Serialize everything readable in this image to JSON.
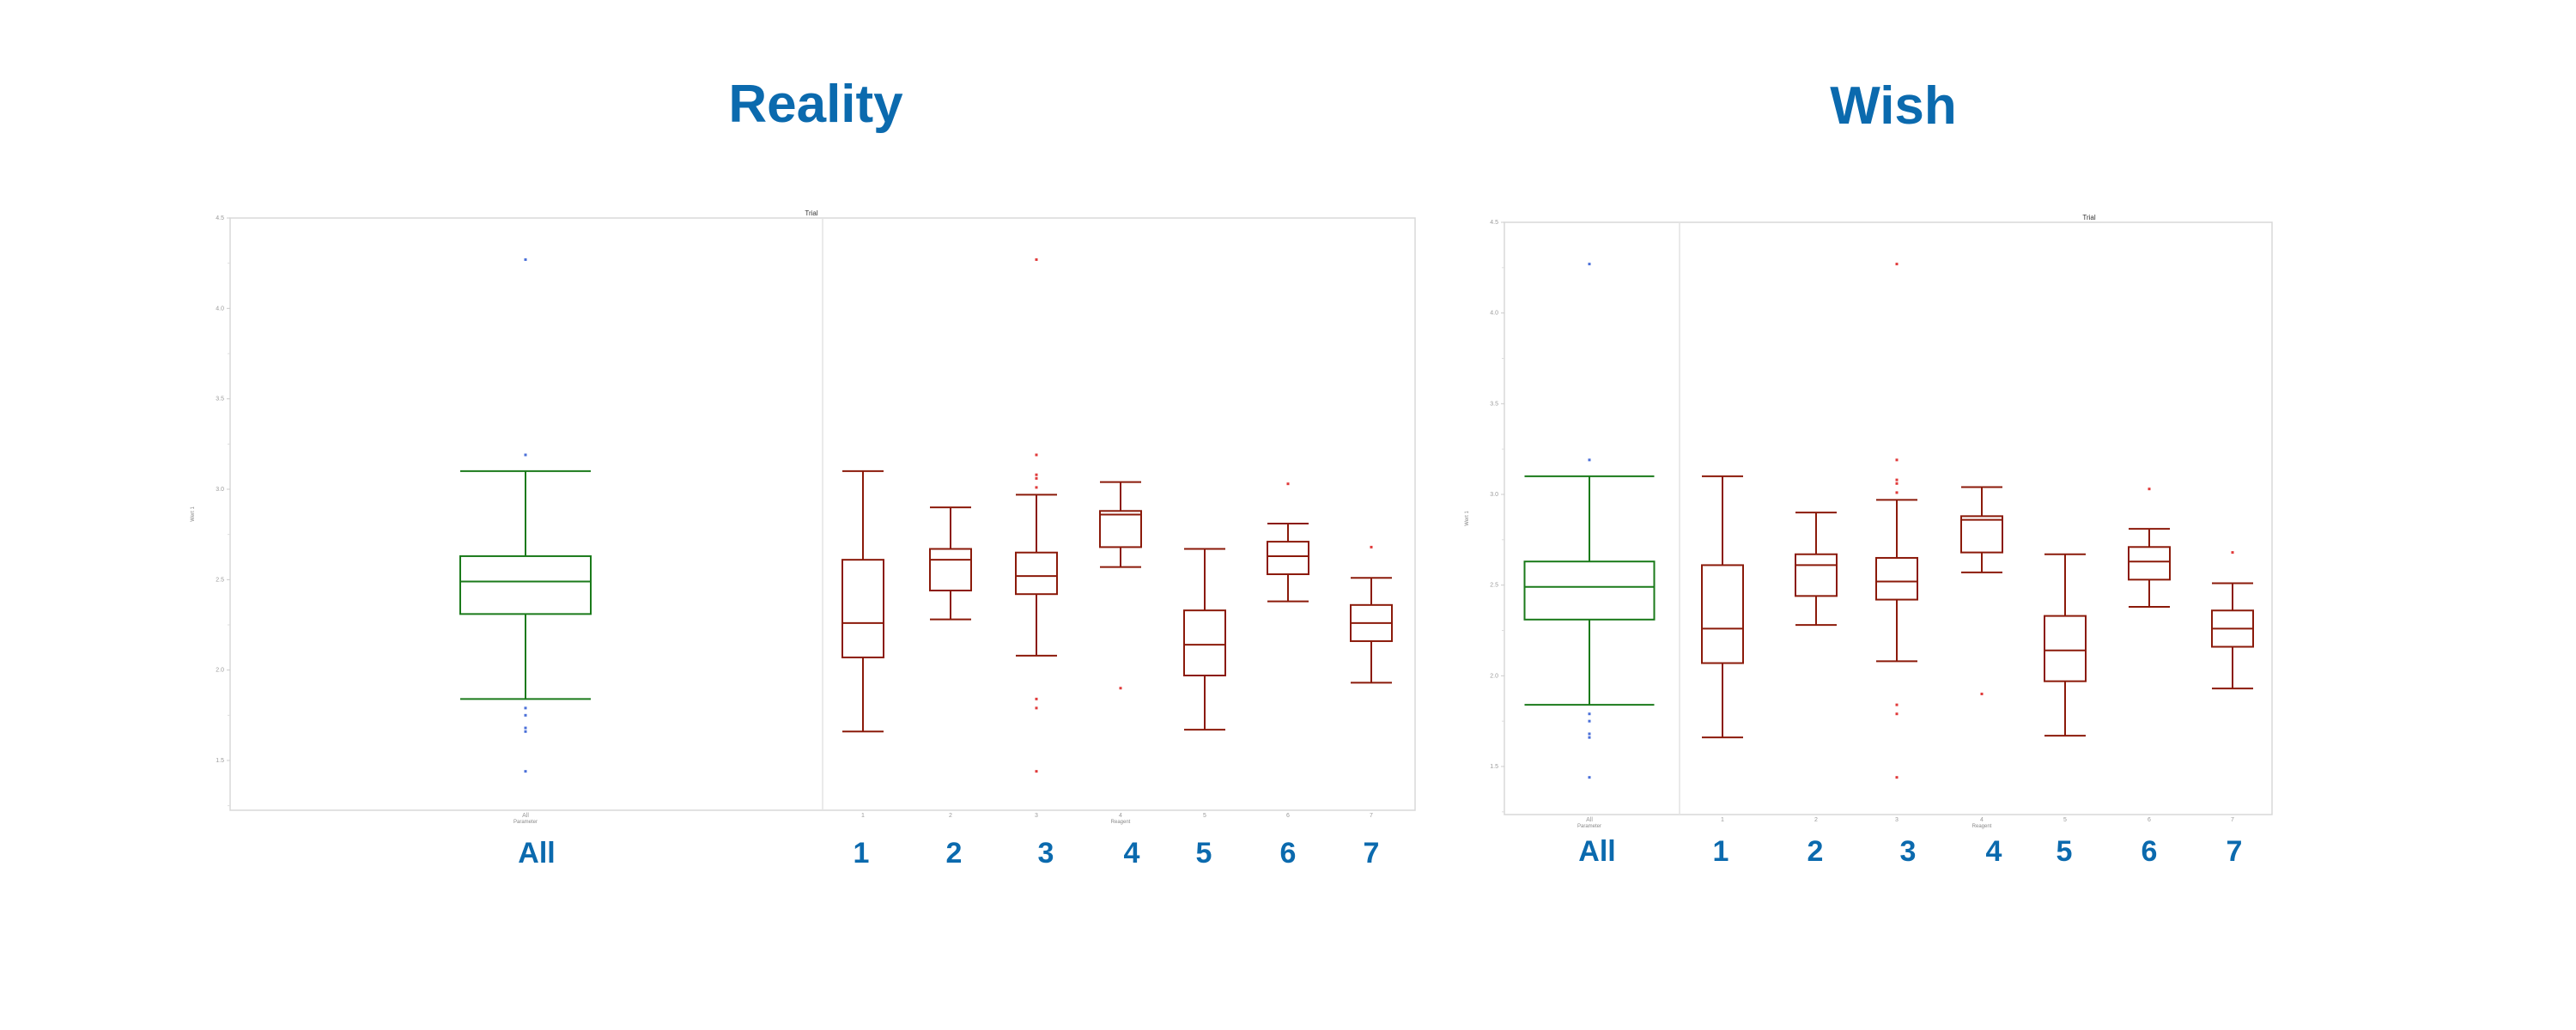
{
  "titles": {
    "left": "Reality",
    "right": "Wish"
  },
  "big_labels": [
    "All",
    "1",
    "2",
    "3",
    "4",
    "5",
    "6",
    "7"
  ],
  "colors": {
    "title": "#0b6aae",
    "all_box": "#1a7a1a",
    "group_box": "#8b1a0a",
    "all_outlier": "#4a6fd8",
    "group_outlier": "#e03a3a",
    "frame": "#d8d8d8"
  },
  "chart_data": [
    {
      "type": "boxplot",
      "title": "Trial",
      "panel_title": "Reality",
      "ylabel": "Wert 1",
      "xlabel_left": "Parameter",
      "xlabel_right": "Reagent",
      "ylim": [
        1.25,
        4.5
      ],
      "yticks": [
        1.5,
        2.0,
        2.5,
        3.0,
        3.5,
        4.0,
        4.5
      ],
      "categories": [
        "All",
        "1",
        "2",
        "3",
        "4",
        "5",
        "6",
        "7"
      ],
      "boxes": [
        {
          "name": "All",
          "whisker_low": 1.84,
          "q1": 2.31,
          "median": 2.49,
          "q3": 2.63,
          "whisker_high": 3.1,
          "outliers": [
            4.27,
            3.19,
            1.79,
            1.75,
            1.68,
            1.66,
            1.44
          ]
        },
        {
          "name": "1",
          "whisker_low": 1.66,
          "q1": 2.07,
          "median": 2.26,
          "q3": 2.61,
          "whisker_high": 3.1,
          "outliers": []
        },
        {
          "name": "2",
          "whisker_low": 2.28,
          "q1": 2.44,
          "median": 2.61,
          "q3": 2.67,
          "whisker_high": 2.9,
          "outliers": []
        },
        {
          "name": "3",
          "whisker_low": 2.08,
          "q1": 2.42,
          "median": 2.52,
          "q3": 2.65,
          "whisker_high": 2.97,
          "outliers": [
            4.27,
            3.19,
            3.08,
            3.06,
            3.01,
            1.84,
            1.79,
            1.44
          ]
        },
        {
          "name": "4",
          "whisker_low": 2.57,
          "q1": 2.68,
          "median": 2.86,
          "q3": 2.88,
          "whisker_high": 3.04,
          "outliers": [
            1.9
          ]
        },
        {
          "name": "5",
          "whisker_low": 1.67,
          "q1": 1.97,
          "median": 2.14,
          "q3": 2.33,
          "whisker_high": 2.67,
          "outliers": []
        },
        {
          "name": "6",
          "whisker_low": 2.38,
          "q1": 2.53,
          "median": 2.63,
          "q3": 2.71,
          "whisker_high": 2.81,
          "outliers": [
            3.03
          ]
        },
        {
          "name": "7",
          "whisker_low": 1.93,
          "q1": 2.16,
          "median": 2.26,
          "q3": 2.36,
          "whisker_high": 2.51,
          "outliers": [
            2.68
          ]
        }
      ]
    },
    {
      "type": "boxplot",
      "title": "Trial",
      "panel_title": "Wish",
      "ylabel": "Wert 1",
      "xlabel_left": "Parameter",
      "xlabel_right": "Reagent",
      "ylim": [
        1.25,
        4.5
      ],
      "yticks": [
        1.5,
        2.0,
        2.5,
        3.0,
        3.5,
        4.0,
        4.5
      ],
      "categories": [
        "All",
        "1",
        "2",
        "3",
        "4",
        "5",
        "6",
        "7"
      ],
      "boxes": [
        {
          "name": "All",
          "whisker_low": 1.84,
          "q1": 2.31,
          "median": 2.49,
          "q3": 2.63,
          "whisker_high": 3.1,
          "outliers": [
            4.27,
            3.19,
            1.79,
            1.75,
            1.68,
            1.66,
            1.44
          ]
        },
        {
          "name": "1",
          "whisker_low": 1.66,
          "q1": 2.07,
          "median": 2.26,
          "q3": 2.61,
          "whisker_high": 3.1,
          "outliers": []
        },
        {
          "name": "2",
          "whisker_low": 2.28,
          "q1": 2.44,
          "median": 2.61,
          "q3": 2.67,
          "whisker_high": 2.9,
          "outliers": []
        },
        {
          "name": "3",
          "whisker_low": 2.08,
          "q1": 2.42,
          "median": 2.52,
          "q3": 2.65,
          "whisker_high": 2.97,
          "outliers": [
            4.27,
            3.19,
            3.08,
            3.06,
            3.01,
            1.84,
            1.79,
            1.44
          ]
        },
        {
          "name": "4",
          "whisker_low": 2.57,
          "q1": 2.68,
          "median": 2.86,
          "q3": 2.88,
          "whisker_high": 3.04,
          "outliers": [
            1.9
          ]
        },
        {
          "name": "5",
          "whisker_low": 1.67,
          "q1": 1.97,
          "median": 2.14,
          "q3": 2.33,
          "whisker_high": 2.67,
          "outliers": []
        },
        {
          "name": "6",
          "whisker_low": 2.38,
          "q1": 2.53,
          "median": 2.63,
          "q3": 2.71,
          "whisker_high": 2.81,
          "outliers": [
            3.03
          ]
        },
        {
          "name": "7",
          "whisker_low": 1.93,
          "q1": 2.16,
          "median": 2.26,
          "q3": 2.36,
          "whisker_high": 2.51,
          "outliers": [
            2.68
          ]
        }
      ]
    }
  ]
}
